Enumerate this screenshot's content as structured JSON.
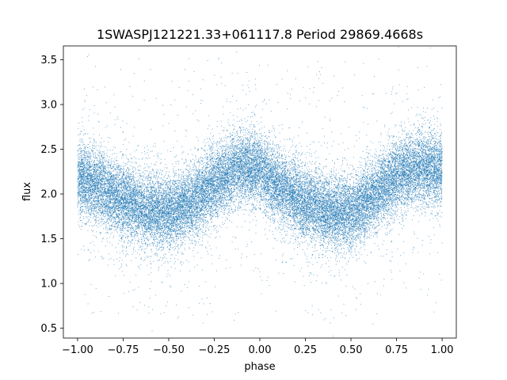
{
  "chart_data": {
    "type": "scatter",
    "title": "1SWASPJ121221.33+061117.8 Period 29869.4668s",
    "xlabel": "phase",
    "ylabel": "flux",
    "xlim": [
      -1.0778,
      1.0778
    ],
    "ylim": [
      0.39,
      3.655
    ],
    "xticks": [
      -1.0,
      -0.75,
      -0.5,
      -0.25,
      0.0,
      0.25,
      0.5,
      0.75,
      1.0
    ],
    "xtick_labels": [
      "−1.00",
      "−0.75",
      "−0.50",
      "−0.25",
      "0.00",
      "0.25",
      "0.50",
      "0.75",
      "1.00"
    ],
    "yticks": [
      0.5,
      1.0,
      1.5,
      2.0,
      2.5,
      3.0,
      3.5
    ],
    "ytick_labels": [
      "0.5",
      "1.0",
      "1.5",
      "2.0",
      "2.5",
      "3.0",
      "3.5"
    ],
    "grid": false,
    "legend": "none",
    "point_color": "#1f77b4",
    "series": [
      {
        "x_range": [
          -1.0,
          1.0
        ],
        "mean_curve": {
          "phase": [
            -1.0,
            -0.875,
            -0.75,
            -0.625,
            -0.5,
            -0.375,
            -0.25,
            -0.125,
            0.0,
            0.125,
            0.25,
            0.375,
            0.5,
            0.625,
            0.75,
            0.875,
            1.0
          ],
          "flux": [
            2.2,
            2.08,
            1.93,
            1.82,
            1.78,
            1.9,
            2.12,
            2.3,
            2.27,
            2.05,
            1.9,
            1.8,
            1.79,
            1.98,
            2.2,
            2.3,
            2.27
          ]
        },
        "scatter_sigma": 0.2,
        "outlier_range": [
          0.55,
          3.55
        ],
        "approx_point_count": 30000
      }
    ]
  }
}
